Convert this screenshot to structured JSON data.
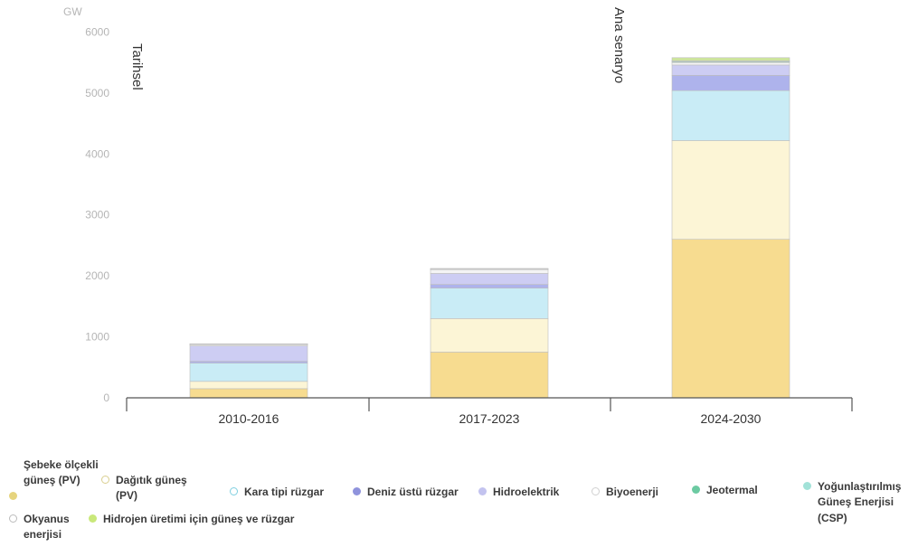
{
  "chart_data": {
    "type": "bar",
    "stacked": true,
    "unit": "GW",
    "categories": [
      "2010-2016",
      "2017-2023",
      "2024-2030"
    ],
    "yticks": [
      0,
      1000,
      2000,
      3000,
      4000,
      5000,
      6000
    ],
    "ylim": [
      0,
      6200
    ],
    "annotations": {
      "historical": "Tarihsel",
      "scenario": "Ana senaryo"
    },
    "series": [
      {
        "name": "Şebeke ölçekli güneş (PV)",
        "color": "#f7dc90",
        "values": [
          150,
          750,
          2600
        ]
      },
      {
        "name": "Dağıtık güneş (PV)",
        "color": "#fcf5d6",
        "values": [
          120,
          550,
          1620
        ]
      },
      {
        "name": "Kara tipi rüzgar",
        "color": "#c9ecf6",
        "values": [
          300,
          500,
          820
        ]
      },
      {
        "name": "Deniz üstü rüzgar",
        "color": "#aeb3ec",
        "values": [
          30,
          60,
          250
        ]
      },
      {
        "name": "Hidroelektrik",
        "color": "#cdcdf3",
        "values": [
          250,
          180,
          170
        ]
      },
      {
        "name": "Biyoenerji",
        "color": "#f4f4f4",
        "values": [
          30,
          70,
          40
        ]
      },
      {
        "name": "Jeotermal",
        "color": "#7fd3b0",
        "values": [
          3,
          5,
          15
        ]
      },
      {
        "name": "Yoğunlaştırılmış Güneş Enerjisi (CSP)",
        "color": "#a2e2d8",
        "values": [
          3,
          5,
          10
        ]
      },
      {
        "name": "Okyanus enerjisi",
        "color": "#e6e6e6",
        "values": [
          1,
          1,
          5
        ]
      },
      {
        "name": "Hidrojen üretimi için güneş ve rüzgar",
        "color": "#cde69c",
        "values": [
          0,
          0,
          50
        ]
      }
    ]
  },
  "legend": [
    {
      "label": "Şebeke ölçekli güneş (PV)",
      "color": "#e6d47e"
    },
    {
      "label": "Dağıtık güneş (PV)",
      "color": "#ffffff",
      "border": "#d9cf8f"
    },
    {
      "label": "Kara tipi rüzgar",
      "color": "#ffffff",
      "border": "#7fcfe0"
    },
    {
      "label": "Deniz üstü rüzgar",
      "color": "#8f93dc"
    },
    {
      "label": "Hidroelektrik",
      "color": "#c3c3ef"
    },
    {
      "label": "Biyoenerji",
      "color": "#ffffff",
      "border": "#d0d0d0"
    },
    {
      "label": "Jeotermal",
      "color": "#6ccaa2"
    },
    {
      "label": "Yoğunlaştırılmış Güneş Enerjisi (CSP)",
      "color": "#a2e2d8"
    },
    {
      "label": "Okyanus enerjisi",
      "color": "#ffffff",
      "border": "#bbbbbb"
    },
    {
      "label": "Hidrojen üretimi için güneş ve rüzgar",
      "color": "#c9e87a"
    }
  ]
}
